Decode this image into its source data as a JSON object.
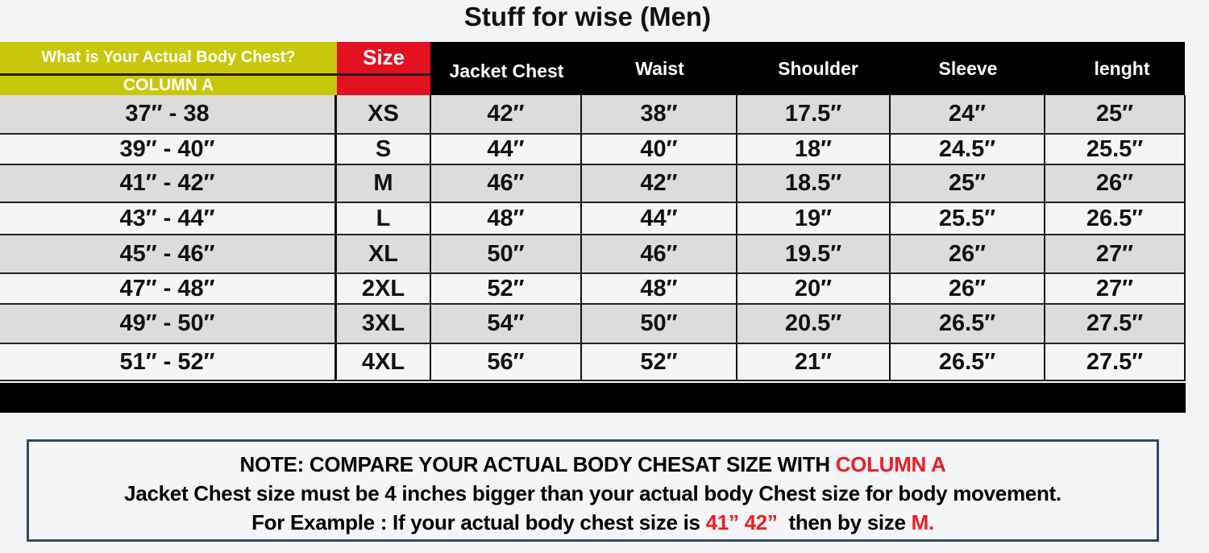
{
  "title": "Stuff for wise (Men)",
  "header": {
    "chest_question": "What is Your Actual Body Chest?",
    "column_a": "COLUMN A",
    "size": "Size",
    "columns": [
      "Jacket Chest",
      "Waist",
      "Shoulder",
      "Sleeve",
      "lenght"
    ]
  },
  "colors": {
    "header_yellow": "#c8c80a",
    "header_red": "#e3101f",
    "row_gray": "#dcdcdc",
    "row_white": "#f4f5f6",
    "note_red": "#ee1c24",
    "note_border": "#2e4a6e"
  },
  "rows": [
    [
      "37″ - 38",
      "XS",
      "42″",
      "38″",
      "17.5″",
      "24″",
      "25″"
    ],
    [
      "39″ - 40″",
      "S",
      "44″",
      "40″",
      "18″",
      "24.5″",
      "25.5″"
    ],
    [
      "41″ - 42″",
      "M",
      "46″",
      "42″",
      "18.5″",
      "25″",
      "26″"
    ],
    [
      "43″ - 44″",
      "L",
      "48″",
      "44″",
      "19″",
      "25.5″",
      "26.5″"
    ],
    [
      "45″ - 46″",
      "XL",
      "50″",
      "46″",
      "19.5″",
      "26″",
      "27″"
    ],
    [
      "47″ - 48″",
      "2XL",
      "52″",
      "48″",
      "20″",
      "26″",
      "27″"
    ],
    [
      "49″ - 50″",
      "3XL",
      "54″",
      "50″",
      "20.5″",
      "26.5″",
      "27.5″"
    ],
    [
      "51″ - 52″",
      "4XL",
      "56″",
      "52″",
      "21″",
      "26.5″",
      "27.5″"
    ]
  ],
  "note": {
    "line1": "NOTE: COMPARE YOUR ACTUAL BODY CHESAT SIZE WITH ",
    "line1_highlight": "COLUMN A",
    "line2": "Jacket Chest size must be 4 inches bigger than your actual body Chest size for body movement.",
    "line3_a": "For Example : If your actual body chest size is ",
    "line3_highlight1": "41” 42”",
    "line3_b": "  then by size ",
    "line3_highlight2": "M."
  }
}
